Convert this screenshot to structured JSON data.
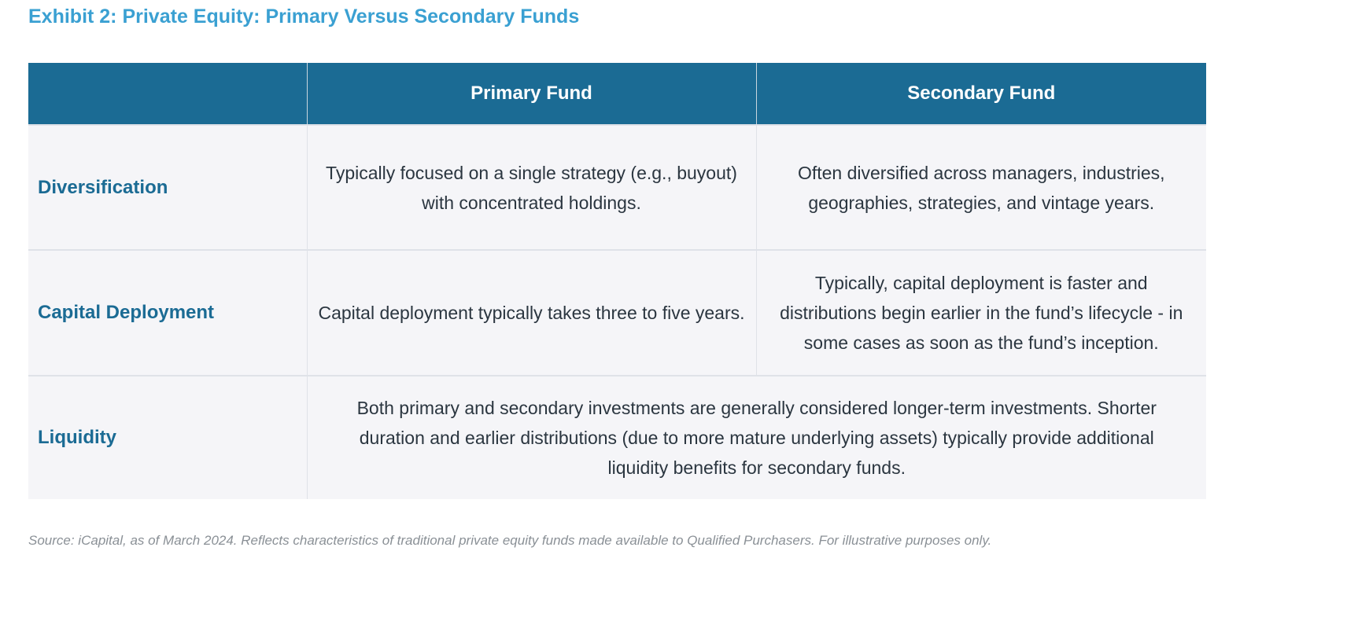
{
  "title": "Exhibit 2: Private Equity: Primary Versus Secondary Funds",
  "table": {
    "headers": [
      "",
      "Primary Fund",
      "Secondary Fund"
    ],
    "rows": [
      {
        "label": "Diversification",
        "primary": "Typically focused on a single strategy (e.g., buyout) with concentrated holdings.",
        "secondary": "Often diversified across managers, industries, geographies, strategies, and vintage years."
      },
      {
        "label": "Capital Deployment",
        "primary": "Capital deployment typically takes three to five years.",
        "secondary": "Typically, capital deployment is faster and distributions begin earlier in the fund’s lifecycle - in some cases as soon as the fund’s inception."
      },
      {
        "label": "Liquidity",
        "combined": "Both primary and secondary investments are generally considered longer-term investments. Shorter duration and earlier distributions (due to more mature underlying assets) typically provide additional liquidity benefits for secondary funds."
      }
    ]
  },
  "source": "Source: iCapital, as of March 2024. Reflects characteristics of traditional private equity funds made available to Qualified Purchasers. For illustrative purposes only.",
  "colors": {
    "header_bg": "#1b6b94",
    "title": "#3aa0d2",
    "row_label": "#1b6b94",
    "row_bg": "#f5f5f8"
  }
}
